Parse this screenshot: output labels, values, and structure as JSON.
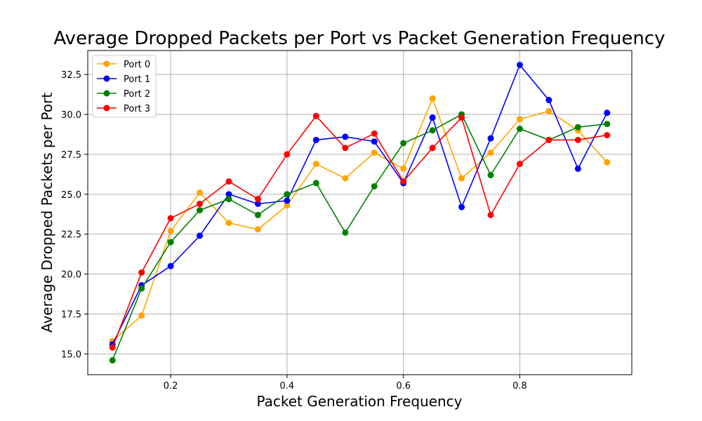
{
  "chart_data": {
    "type": "line",
    "title": "Average Dropped Packets per Port vs Packet Generation Frequency",
    "xlabel": "Packet Generation Frequency",
    "ylabel": "Average Dropped Packets per Port",
    "xlim": [
      0.0575,
      0.9925
    ],
    "ylim": [
      13.7,
      34.0
    ],
    "xticks": [
      0.2,
      0.4,
      0.6,
      0.8
    ],
    "xtick_labels": [
      "0.2",
      "0.4",
      "0.6",
      "0.8"
    ],
    "yticks": [
      15.0,
      17.5,
      20.0,
      22.5,
      25.0,
      27.5,
      30.0,
      32.5
    ],
    "ytick_labels": [
      "15.0",
      "17.5",
      "20.0",
      "22.5",
      "25.0",
      "27.5",
      "30.0",
      "32.5"
    ],
    "grid": true,
    "legend_position": "top-left",
    "x": [
      0.1,
      0.15,
      0.2,
      0.25,
      0.3,
      0.35,
      0.4,
      0.45,
      0.5,
      0.55,
      0.6,
      0.65,
      0.7,
      0.75,
      0.8,
      0.85,
      0.9,
      0.95
    ],
    "series": [
      {
        "name": "Port 0",
        "color": "#ffa500",
        "values": [
          15.8,
          17.4,
          22.7,
          25.1,
          23.2,
          22.8,
          24.3,
          26.9,
          26.0,
          27.6,
          26.6,
          31.0,
          26.0,
          27.6,
          29.7,
          30.2,
          29.0,
          27.0
        ]
      },
      {
        "name": "Port 1",
        "color": "#0000ff",
        "values": [
          15.6,
          19.3,
          20.5,
          22.4,
          25.0,
          24.4,
          24.6,
          28.4,
          28.6,
          28.3,
          25.7,
          29.8,
          24.2,
          28.5,
          33.1,
          30.9,
          26.6,
          30.1
        ]
      },
      {
        "name": "Port 2",
        "color": "#008000",
        "values": [
          14.6,
          19.1,
          22.0,
          24.0,
          24.7,
          23.7,
          25.0,
          25.7,
          22.6,
          25.5,
          28.2,
          29.0,
          30.0,
          26.2,
          29.1,
          28.4,
          29.2,
          29.4
        ]
      },
      {
        "name": "Port 3",
        "color": "#ff0000",
        "values": [
          15.4,
          20.1,
          23.5,
          24.4,
          25.8,
          24.7,
          27.5,
          29.9,
          27.9,
          28.8,
          25.8,
          27.9,
          29.8,
          23.7,
          26.9,
          28.4,
          28.4,
          28.7
        ]
      }
    ]
  }
}
